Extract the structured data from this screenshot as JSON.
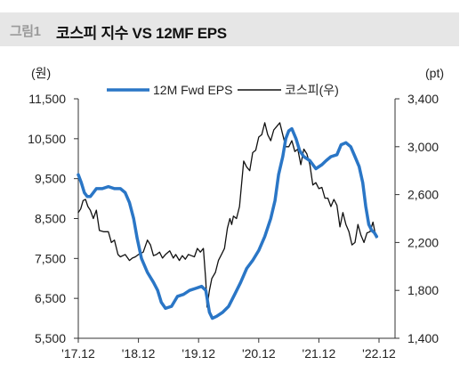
{
  "header": {
    "figure_no": "그림1",
    "title": "코스피 지수 VS 12MF EPS"
  },
  "chart_data": {
    "type": "line",
    "title": "코스피 지수 VS 12MF EPS",
    "left_unit": "(원)",
    "right_unit": "(pt)",
    "x_ticks": [
      "'17.12",
      "'18.12",
      "'19.12",
      "'20.12",
      "'21.12",
      "'22.12"
    ],
    "y_left": {
      "min": 5500,
      "max": 11500,
      "ticks": [
        "11,500",
        "10,500",
        "9,500",
        "8,500",
        "7,500",
        "6,500",
        "5,500"
      ],
      "tick_values": [
        11500,
        10500,
        9500,
        8500,
        7500,
        6500,
        5500
      ]
    },
    "y_right": {
      "min": 1400,
      "max": 3400,
      "ticks": [
        "3,400",
        "3,000",
        "2,600",
        "2,200",
        "1,800",
        "1,400"
      ],
      "tick_values": [
        3400,
        3000,
        2600,
        2200,
        1800,
        1400
      ]
    },
    "grid": false,
    "legend_position": "top-center",
    "series": [
      {
        "name": "12M Fwd EPS",
        "axis": "left",
        "color": "#2a76c6",
        "points": [
          [
            0.0,
            9600
          ],
          [
            0.05,
            9400
          ],
          [
            0.1,
            9150
          ],
          [
            0.15,
            9050
          ],
          [
            0.2,
            9050
          ],
          [
            0.25,
            9150
          ],
          [
            0.3,
            9250
          ],
          [
            0.4,
            9250
          ],
          [
            0.5,
            9300
          ],
          [
            0.6,
            9250
          ],
          [
            0.7,
            9250
          ],
          [
            0.78,
            9150
          ],
          [
            0.85,
            8900
          ],
          [
            0.92,
            8500
          ],
          [
            0.98,
            8000
          ],
          [
            1.05,
            7500
          ],
          [
            1.15,
            7150
          ],
          [
            1.25,
            6900
          ],
          [
            1.32,
            6700
          ],
          [
            1.38,
            6400
          ],
          [
            1.45,
            6250
          ],
          [
            1.55,
            6300
          ],
          [
            1.65,
            6550
          ],
          [
            1.75,
            6600
          ],
          [
            1.85,
            6700
          ],
          [
            1.95,
            6750
          ],
          [
            2.05,
            6800
          ],
          [
            2.12,
            6700
          ],
          [
            2.18,
            6150
          ],
          [
            2.23,
            6000
          ],
          [
            2.3,
            6050
          ],
          [
            2.4,
            6150
          ],
          [
            2.5,
            6300
          ],
          [
            2.6,
            6600
          ],
          [
            2.7,
            6900
          ],
          [
            2.8,
            7250
          ],
          [
            2.9,
            7450
          ],
          [
            3.0,
            7700
          ],
          [
            3.1,
            8050
          ],
          [
            3.2,
            8500
          ],
          [
            3.27,
            8950
          ],
          [
            3.33,
            9600
          ],
          [
            3.4,
            10050
          ],
          [
            3.45,
            10500
          ],
          [
            3.5,
            10700
          ],
          [
            3.55,
            10750
          ],
          [
            3.62,
            10500
          ],
          [
            3.68,
            10200
          ],
          [
            3.75,
            10050
          ],
          [
            3.85,
            9950
          ],
          [
            3.95,
            9750
          ],
          [
            4.05,
            9850
          ],
          [
            4.12,
            9950
          ],
          [
            4.2,
            10050
          ],
          [
            4.3,
            10100
          ],
          [
            4.37,
            10350
          ],
          [
            4.45,
            10400
          ],
          [
            4.53,
            10300
          ],
          [
            4.6,
            10050
          ],
          [
            4.67,
            9800
          ],
          [
            4.73,
            9400
          ],
          [
            4.78,
            8800
          ],
          [
            4.83,
            8350
          ],
          [
            4.88,
            8200
          ],
          [
            4.92,
            8150
          ],
          [
            4.96,
            8050
          ]
        ]
      },
      {
        "name": "코스피(우)",
        "axis": "right",
        "color": "#111111",
        "points": [
          [
            0.0,
            2450
          ],
          [
            0.04,
            2480
          ],
          [
            0.08,
            2550
          ],
          [
            0.12,
            2560
          ],
          [
            0.16,
            2500
          ],
          [
            0.2,
            2470
          ],
          [
            0.25,
            2400
          ],
          [
            0.3,
            2470
          ],
          [
            0.35,
            2300
          ],
          [
            0.42,
            2290
          ],
          [
            0.5,
            2290
          ],
          [
            0.55,
            2200
          ],
          [
            0.6,
            2220
          ],
          [
            0.66,
            2100
          ],
          [
            0.7,
            2080
          ],
          [
            0.78,
            2100
          ],
          [
            0.85,
            2050
          ],
          [
            0.9,
            2070
          ],
          [
            0.95,
            2080
          ],
          [
            1.0,
            2100
          ],
          [
            1.08,
            2120
          ],
          [
            1.15,
            2220
          ],
          [
            1.2,
            2180
          ],
          [
            1.25,
            2090
          ],
          [
            1.3,
            2100
          ],
          [
            1.35,
            2120
          ],
          [
            1.4,
            2070
          ],
          [
            1.45,
            2100
          ],
          [
            1.52,
            2130
          ],
          [
            1.58,
            2070
          ],
          [
            1.62,
            2100
          ],
          [
            1.68,
            2050
          ],
          [
            1.73,
            2090
          ],
          [
            1.78,
            2060
          ],
          [
            1.83,
            2100
          ],
          [
            1.88,
            2090
          ],
          [
            1.93,
            2080
          ],
          [
            1.98,
            2150
          ],
          [
            2.03,
            2120
          ],
          [
            2.08,
            2150
          ],
          [
            2.12,
            1880
          ],
          [
            2.14,
            1660
          ],
          [
            2.18,
            1800
          ],
          [
            2.22,
            1900
          ],
          [
            2.28,
            1950
          ],
          [
            2.33,
            2050
          ],
          [
            2.38,
            2100
          ],
          [
            2.43,
            2150
          ],
          [
            2.48,
            2320
          ],
          [
            2.52,
            2400
          ],
          [
            2.55,
            2350
          ],
          [
            2.58,
            2420
          ],
          [
            2.63,
            2400
          ],
          [
            2.68,
            2500
          ],
          [
            2.75,
            2880
          ],
          [
            2.8,
            2830
          ],
          [
            2.85,
            2800
          ],
          [
            2.9,
            2950
          ],
          [
            2.95,
            2970
          ],
          [
            3.0,
            3080
          ],
          [
            3.05,
            3100
          ],
          [
            3.1,
            3200
          ],
          [
            3.15,
            3100
          ],
          [
            3.2,
            3050
          ],
          [
            3.25,
            3140
          ],
          [
            3.3,
            3170
          ],
          [
            3.35,
            3200
          ],
          [
            3.4,
            3100
          ],
          [
            3.45,
            3000
          ],
          [
            3.5,
            3000
          ],
          [
            3.55,
            3050
          ],
          [
            3.6,
            2960
          ],
          [
            3.65,
            2980
          ],
          [
            3.7,
            2850
          ],
          [
            3.75,
            2980
          ],
          [
            3.8,
            2940
          ],
          [
            3.85,
            2850
          ],
          [
            3.9,
            2680
          ],
          [
            3.95,
            2700
          ],
          [
            4.0,
            2650
          ],
          [
            4.05,
            2660
          ],
          [
            4.1,
            2570
          ],
          [
            4.15,
            2570
          ],
          [
            4.2,
            2500
          ],
          [
            4.25,
            2560
          ],
          [
            4.3,
            2510
          ],
          [
            4.35,
            2330
          ],
          [
            4.4,
            2450
          ],
          [
            4.45,
            2350
          ],
          [
            4.5,
            2290
          ],
          [
            4.55,
            2180
          ],
          [
            4.6,
            2200
          ],
          [
            4.65,
            2350
          ],
          [
            4.7,
            2260
          ],
          [
            4.75,
            2200
          ],
          [
            4.8,
            2280
          ],
          [
            4.85,
            2290
          ],
          [
            4.9,
            2370
          ],
          [
            4.95,
            2240
          ]
        ]
      }
    ]
  }
}
